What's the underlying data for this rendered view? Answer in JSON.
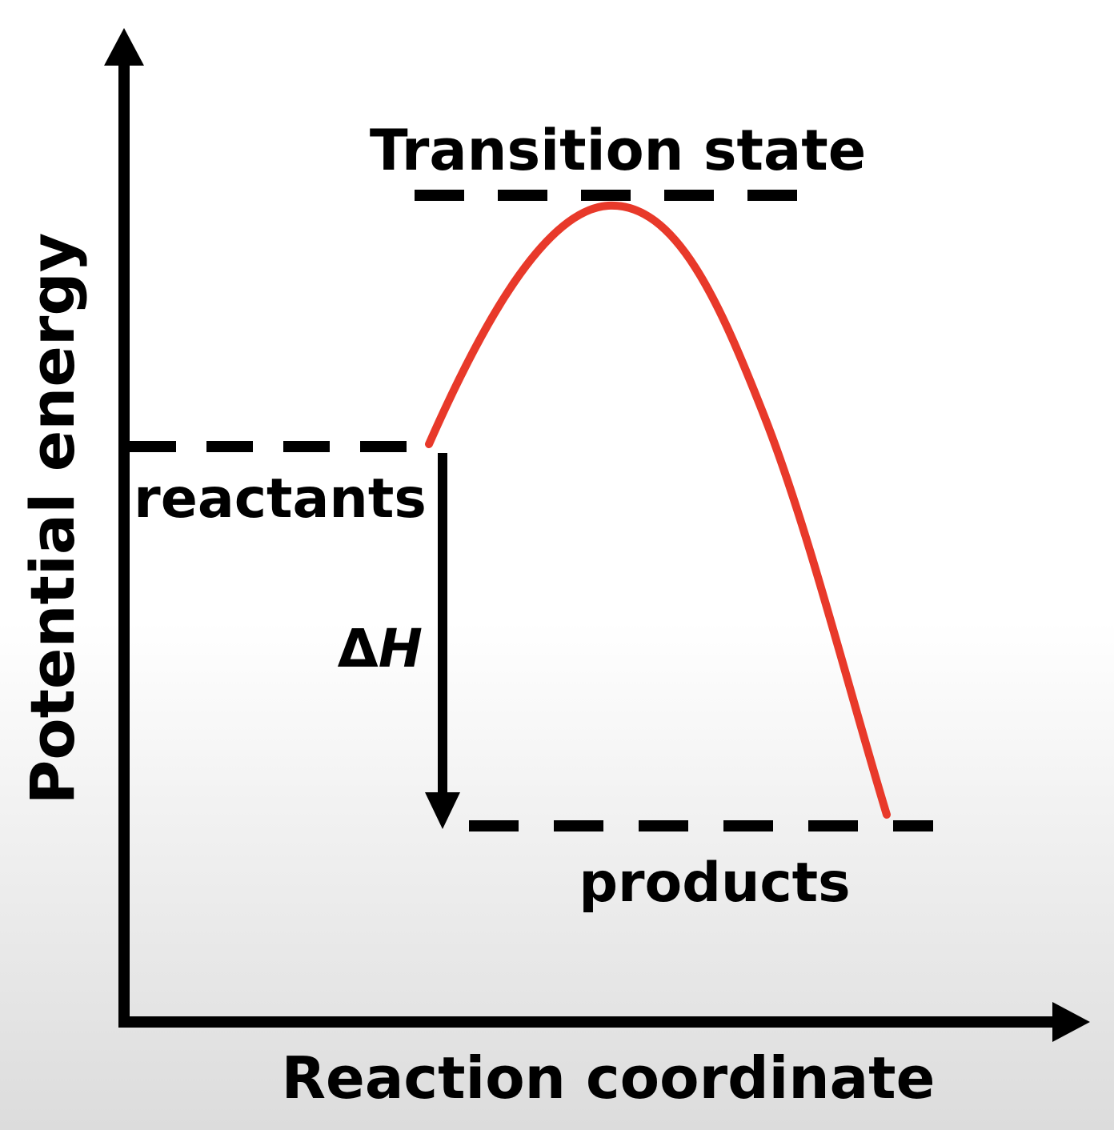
{
  "diagram": {
    "y_axis_label": "Potential energy",
    "x_axis_label": "Reaction coordinate",
    "transition_state_label": "Transition state",
    "reactants_label": "reactants",
    "products_label": "products",
    "delta_label": "Δ",
    "delta_var": "H",
    "curve_color": "#e8392a",
    "line_color": "#000000"
  }
}
